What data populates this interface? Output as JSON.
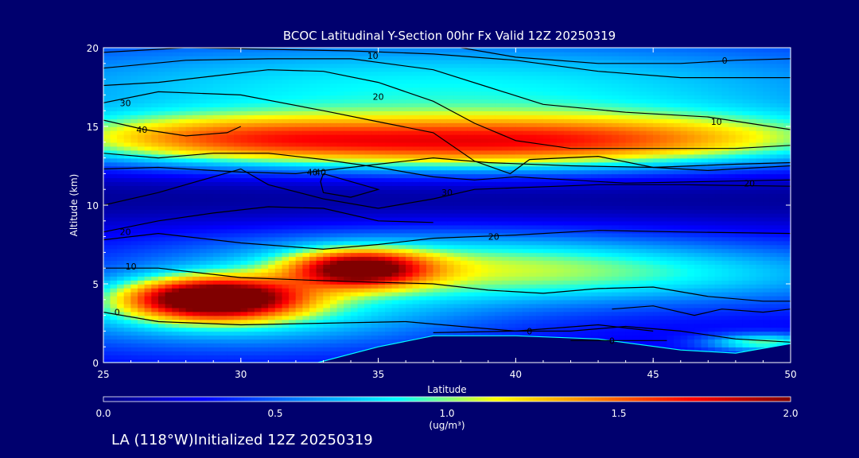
{
  "colors": {
    "background": "#00006e",
    "contour_line": "#000000",
    "colormap": [
      "#000080",
      "#0000ff",
      "#0080ff",
      "#00ffff",
      "#ffff00",
      "#ff8000",
      "#ff0000",
      "#800000"
    ]
  },
  "footer": {
    "text": "LA (118°W)Initialized 12Z 20250319"
  },
  "chart_data": {
    "type": "heatmap",
    "title": "BCOC Latitudinal Y-Section 00hr  Fx Valid 12Z 20250319",
    "xlabel": "Latitude",
    "ylabel": "Altitude (km)",
    "xlim": [
      25,
      50
    ],
    "ylim": [
      0,
      20
    ],
    "xticks": [
      25,
      30,
      35,
      40,
      45,
      50
    ],
    "yticks": [
      0,
      5,
      10,
      15,
      20
    ],
    "colorbar": {
      "label": "(ug/m³)",
      "range": [
        0.0,
        2.0
      ],
      "ticks": [
        "0.0",
        "0.5",
        "1.0",
        "1.5",
        "2.0"
      ]
    },
    "concentration_blobs": [
      {
        "lat": 29.0,
        "alt": 4.1,
        "peak": 1.75,
        "sx": 2.2,
        "sz": 0.9
      },
      {
        "lat": 34.3,
        "alt": 6.0,
        "peak": 1.3,
        "sx": 1.7,
        "sz": 0.8
      },
      {
        "lat": 30.0,
        "alt": 3.0,
        "peak": 0.55,
        "sx": 6.0,
        "sz": 1.6
      },
      {
        "lat": 37.0,
        "alt": 6.5,
        "peak": 0.5,
        "sx": 7.0,
        "sz": 1.5
      },
      {
        "lat": 44.0,
        "alt": 5.5,
        "peak": 0.45,
        "sx": 9.0,
        "sz": 1.4
      },
      {
        "lat": 29.0,
        "alt": 14.2,
        "peak": 0.85,
        "sx": 5.0,
        "sz": 1.1
      },
      {
        "lat": 38.0,
        "alt": 13.8,
        "peak": 0.75,
        "sx": 6.0,
        "sz": 1.2
      },
      {
        "lat": 45.0,
        "alt": 14.2,
        "peak": 0.7,
        "sx": 7.0,
        "sz": 1.2
      },
      {
        "lat": 37.0,
        "alt": 17.5,
        "peak": 0.6,
        "sx": 14.0,
        "sz": 2.3
      },
      {
        "lat": 49.0,
        "alt": 1.3,
        "peak": 0.7,
        "sx": 1.5,
        "sz": 0.4
      }
    ],
    "background_level": 0.25,
    "low_band": {
      "alt": 10.5,
      "depth": 0.2,
      "sz": 1.4
    },
    "terrain": [
      [
        25,
        0
      ],
      [
        32.8,
        0
      ],
      [
        35,
        1
      ],
      [
        37,
        1.7
      ],
      [
        40,
        1.7
      ],
      [
        43,
        1.5
      ],
      [
        46,
        0.8
      ],
      [
        48,
        0.6
      ],
      [
        50,
        1.2
      ]
    ],
    "contours": [
      {
        "label": "0",
        "points": [
          [
            25,
            3.2
          ],
          [
            27,
            2.6
          ],
          [
            30,
            2.4
          ],
          [
            33,
            2.5
          ],
          [
            36,
            2.6
          ],
          [
            38,
            2.3
          ],
          [
            40,
            2.0
          ],
          [
            42,
            2.0
          ],
          [
            44,
            2.3
          ],
          [
            46,
            2.0
          ],
          [
            48,
            1.5
          ],
          [
            50,
            1.3
          ]
        ],
        "label_at": [
          25.5,
          3.2
        ]
      },
      {
        "label": "0",
        "points": [
          [
            37,
            1.9
          ],
          [
            40,
            2.0
          ],
          [
            43,
            2.4
          ],
          [
            45,
            2.0
          ]
        ],
        "label_at": [
          40.5,
          2.0
        ]
      },
      {
        "label": "0",
        "points": [
          [
            42,
            1.4
          ],
          [
            44,
            1.4
          ],
          [
            45.5,
            1.4
          ]
        ],
        "label_at": [
          43.5,
          1.4
        ]
      },
      {
        "label": "10",
        "points": [
          [
            25,
            6.0
          ],
          [
            27,
            6.0
          ],
          [
            30,
            5.4
          ],
          [
            33,
            5.2
          ],
          [
            35,
            5.1
          ],
          [
            37,
            5.0
          ],
          [
            39,
            4.6
          ],
          [
            41,
            4.4
          ],
          [
            43,
            4.7
          ],
          [
            45,
            4.8
          ],
          [
            47,
            4.2
          ],
          [
            49,
            3.9
          ],
          [
            50,
            3.9
          ]
        ],
        "label_at": [
          26,
          6.1
        ]
      },
      {
        "label": "20",
        "points": [
          [
            25,
            7.8
          ],
          [
            27,
            8.2
          ],
          [
            30,
            7.6
          ],
          [
            33,
            7.2
          ],
          [
            35,
            7.5
          ],
          [
            37,
            7.9
          ],
          [
            40,
            8.1
          ],
          [
            43,
            8.4
          ],
          [
            46,
            8.3
          ],
          [
            50,
            8.2
          ]
        ],
        "label_at": [
          39.2,
          8.0
        ]
      },
      {
        "label": "20",
        "points": [
          [
            25,
            8.3
          ],
          [
            27,
            9.0
          ],
          [
            29,
            9.5
          ],
          [
            31,
            9.9
          ],
          [
            33,
            9.8
          ],
          [
            35,
            9.0
          ],
          [
            37,
            8.9
          ]
        ],
        "label_at": [
          25.8,
          8.3
        ]
      },
      {
        "label": "30",
        "points": [
          [
            25,
            10.0
          ],
          [
            27,
            10.8
          ],
          [
            29,
            11.8
          ],
          [
            30,
            12.3
          ],
          [
            31,
            11.3
          ],
          [
            33,
            10.4
          ],
          [
            35,
            9.8
          ],
          [
            37,
            10.4
          ],
          [
            38.5,
            11.0
          ],
          [
            40,
            11.1
          ],
          [
            43,
            11.3
          ],
          [
            46,
            11.3
          ],
          [
            50,
            11.2
          ]
        ],
        "label_at": [
          37.5,
          10.8
        ]
      },
      {
        "label": "40",
        "points": [
          [
            25,
            13.3
          ],
          [
            27,
            13.0
          ],
          [
            29,
            13.3
          ],
          [
            31,
            13.3
          ],
          [
            33,
            12.9
          ],
          [
            35,
            12.4
          ],
          [
            37,
            11.8
          ],
          [
            38.5,
            11.6
          ],
          [
            40,
            11.8
          ],
          [
            42,
            11.6
          ],
          [
            44,
            11.4
          ],
          [
            47,
            11.5
          ],
          [
            50,
            11.6
          ]
        ],
        "label_at": [
          32.6,
          12.1
        ]
      },
      {
        "label": "20",
        "points": [
          [
            25,
            12.3
          ],
          [
            27,
            12.4
          ],
          [
            30,
            12.1
          ],
          [
            32,
            12.0
          ],
          [
            35,
            12.6
          ],
          [
            37,
            13.0
          ],
          [
            39,
            12.7
          ],
          [
            42,
            12.5
          ],
          [
            45,
            12.4
          ],
          [
            48,
            12.6
          ],
          [
            50,
            12.7
          ]
        ],
        "label_at": [
          48.5,
          11.4
        ]
      },
      {
        "label": "40",
        "points": [
          [
            25,
            15.4
          ],
          [
            26.5,
            14.8
          ],
          [
            28,
            14.4
          ],
          [
            29.5,
            14.6
          ],
          [
            30,
            15.0
          ]
        ],
        "label_at": [
          26.4,
          14.8
        ]
      },
      {
        "label": "30",
        "points": [
          [
            25,
            16.5
          ],
          [
            27,
            17.2
          ],
          [
            30,
            17.0
          ],
          [
            33,
            16.0
          ],
          [
            35,
            15.3
          ],
          [
            37,
            14.6
          ],
          [
            38.5,
            12.8
          ],
          [
            39.8,
            12.0
          ],
          [
            40.5,
            12.9
          ],
          [
            43,
            13.1
          ],
          [
            45,
            12.4
          ],
          [
            47,
            12.2
          ],
          [
            50,
            12.5
          ]
        ],
        "label_at": [
          25.8,
          16.5
        ]
      },
      {
        "label": "20",
        "points": [
          [
            25,
            17.6
          ],
          [
            27,
            17.8
          ],
          [
            29,
            18.2
          ],
          [
            31,
            18.6
          ],
          [
            33,
            18.5
          ],
          [
            35,
            17.8
          ],
          [
            37,
            16.6
          ],
          [
            38.5,
            15.2
          ],
          [
            40,
            14.1
          ],
          [
            42,
            13.6
          ],
          [
            45,
            13.6
          ],
          [
            48,
            13.6
          ],
          [
            50,
            13.8
          ]
        ],
        "label_at": [
          35,
          16.9
        ]
      },
      {
        "label": "10",
        "points": [
          [
            25,
            18.7
          ],
          [
            28,
            19.2
          ],
          [
            31,
            19.3
          ],
          [
            34,
            19.3
          ],
          [
            37,
            18.6
          ],
          [
            39,
            17.5
          ],
          [
            41,
            16.4
          ],
          [
            44,
            15.9
          ],
          [
            47,
            15.6
          ],
          [
            50,
            14.8
          ]
        ],
        "label_at": [
          47.3,
          15.3
        ]
      },
      {
        "label": "10",
        "points": [
          [
            25,
            19.7
          ],
          [
            28,
            20.0
          ],
          [
            31,
            19.9
          ],
          [
            34,
            19.8
          ],
          [
            37,
            19.6
          ],
          [
            40,
            19.2
          ],
          [
            43,
            18.5
          ],
          [
            46,
            18.1
          ],
          [
            48,
            18.1
          ],
          [
            50,
            18.1
          ]
        ],
        "label_at": [
          34.8,
          19.5
        ]
      },
      {
        "label": "0",
        "points": [
          [
            38,
            20.0
          ],
          [
            40,
            19.4
          ],
          [
            43,
            19.0
          ],
          [
            46,
            19.0
          ],
          [
            48,
            19.2
          ],
          [
            50,
            19.3
          ]
        ],
        "label_at": [
          47.6,
          19.2
        ]
      },
      {
        "label": "40",
        "points": [
          [
            33,
            12.0
          ],
          [
            34,
            11.5
          ],
          [
            35,
            11.0
          ],
          [
            34,
            10.5
          ],
          [
            33,
            10.8
          ],
          [
            32.9,
            11.5
          ],
          [
            33,
            12.0
          ]
        ],
        "label_at": [
          32.9,
          12.1
        ]
      },
      {
        "label": "",
        "points": [
          [
            43.5,
            3.4
          ],
          [
            45,
            3.6
          ],
          [
            46.5,
            3.0
          ],
          [
            47.5,
            3.4
          ],
          [
            49,
            3.2
          ],
          [
            50,
            3.4
          ]
        ],
        "label_at": null
      }
    ]
  }
}
